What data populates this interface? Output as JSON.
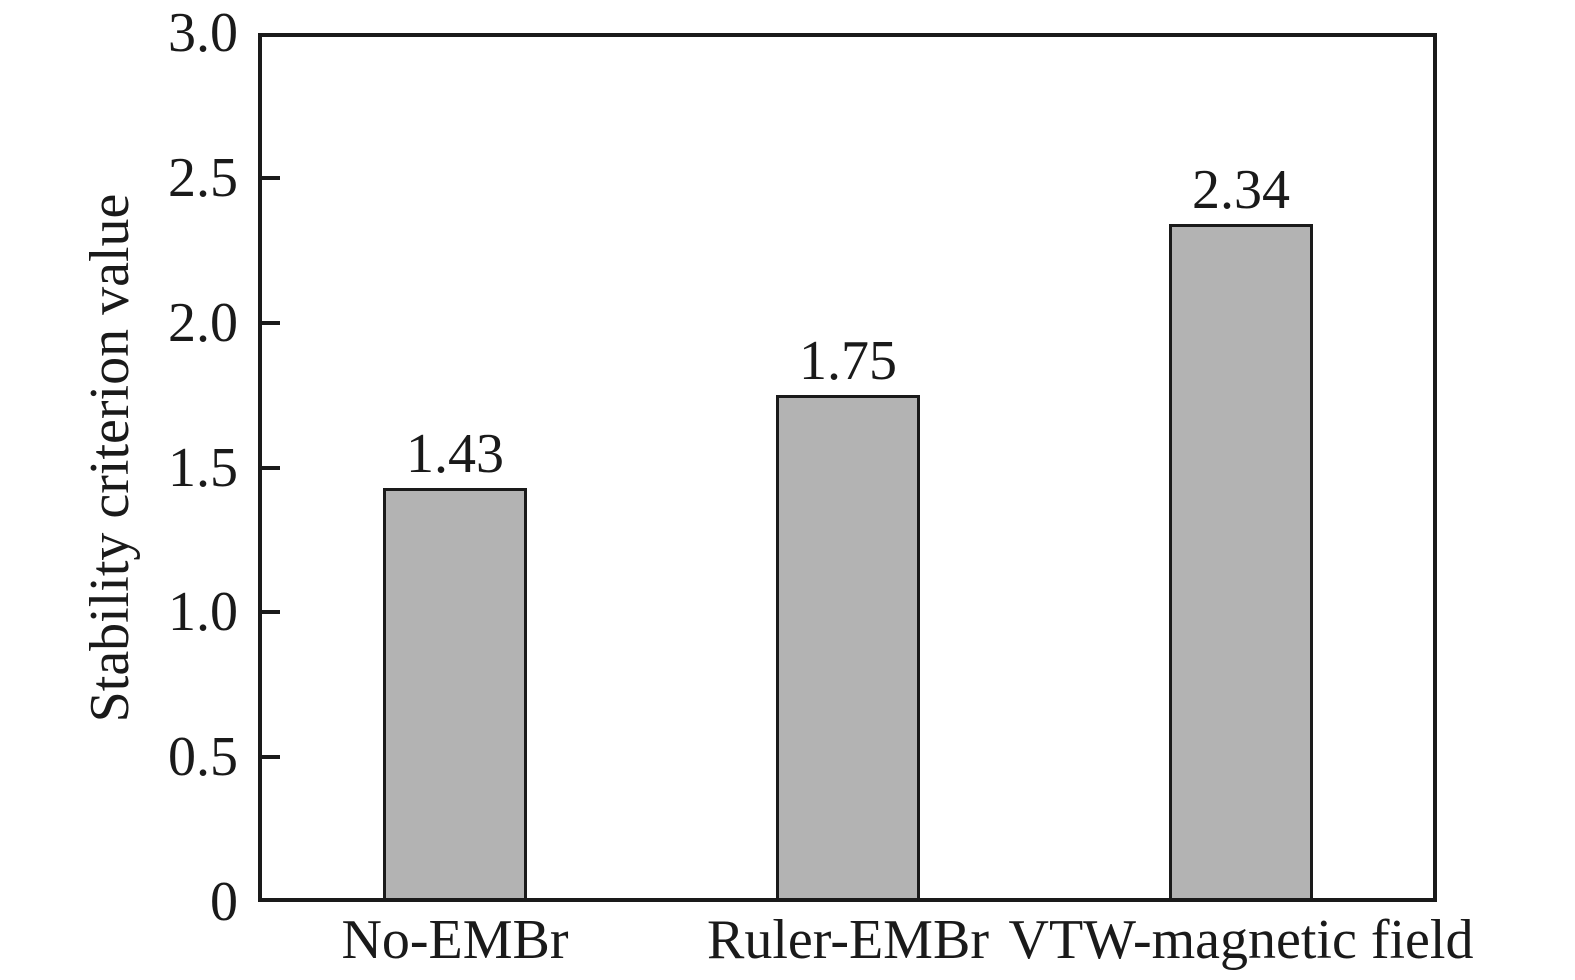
{
  "chart_data": {
    "type": "bar",
    "title": "",
    "xlabel": "",
    "ylabel": "Stability criterion value",
    "categories": [
      "No-EMBr",
      "Ruler-EMBr",
      "VTW-magnetic field"
    ],
    "values": [
      1.43,
      1.75,
      2.34
    ],
    "value_labels": [
      "1.43",
      "1.75",
      "2.34"
    ],
    "ylim": [
      0,
      3.0
    ],
    "yticks": [
      0,
      0.5,
      1.0,
      1.5,
      2.0,
      2.5,
      3.0
    ],
    "ytick_labels": [
      "0",
      "0.5",
      "1.0",
      "1.5",
      "2.0",
      "2.5",
      "3.0"
    ],
    "grid": false,
    "legend": "none",
    "colors": {
      "bar_fill": "#b3b3b3",
      "bar_edge": "#1a1a1a",
      "axis": "#1a1a1a",
      "text": "#1a1a1a",
      "background": "#ffffff"
    }
  }
}
